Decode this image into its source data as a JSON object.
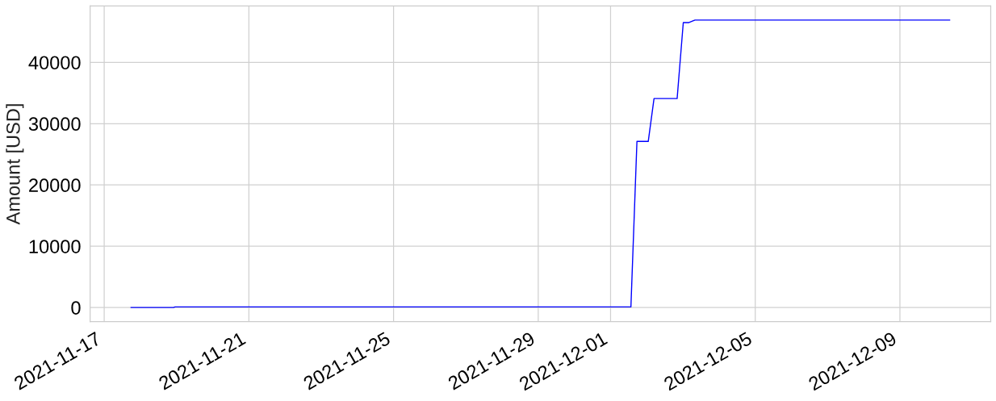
{
  "chart_data": {
    "type": "line",
    "ylabel": "Amount [USD]",
    "x": [
      "2021-11-17T17:50",
      "2021-11-18T22:00",
      "2021-11-18T23:00",
      "2021-12-01T13:30",
      "2021-12-01T17:30",
      "2021-12-02T01:00",
      "2021-12-02T04:50",
      "2021-12-02T20:10",
      "2021-12-03T00:15",
      "2021-12-03T04:00",
      "2021-12-03T08:00",
      "2021-12-10T09:00"
    ],
    "values": [
      0,
      0,
      100,
      100,
      27100,
      27100,
      34100,
      34100,
      46500,
      46500,
      46900,
      46900
    ],
    "color": "#0000ff",
    "xlim": [
      "2021-11-16T14:40",
      "2021-12-11T12:15"
    ],
    "xticks": [
      "2021-11-17",
      "2021-11-21",
      "2021-11-25",
      "2021-11-29",
      "2021-12-01",
      "2021-12-05",
      "2021-12-09"
    ],
    "ylim": [
      -2300,
      49200
    ],
    "yticks": [
      0,
      10000,
      20000,
      30000,
      40000
    ],
    "grid": true
  }
}
